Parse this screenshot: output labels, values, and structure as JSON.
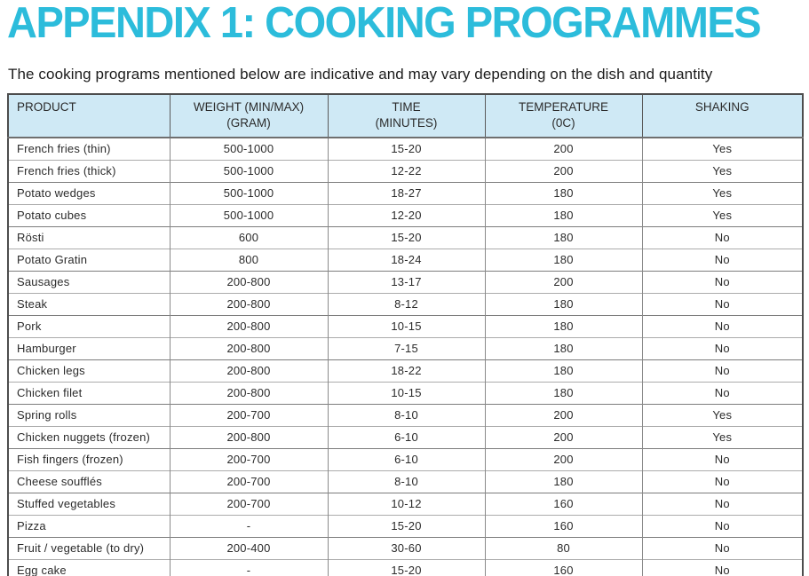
{
  "page": {
    "title": "APPENDIX 1: COOKING PROGRAMMES",
    "subtitle": "The cooking programs mentioned below are indicative and may vary depending on the dish and quantity"
  },
  "colors": {
    "accent_cyan": "#2cbcdb",
    "header_background": "#cfe9f5",
    "body_text": "#2b2b2b",
    "border_dark": "#4d4d4d",
    "border_light": "#ababab"
  },
  "table": {
    "columns": [
      {
        "key": "product",
        "label": "PRODUCT",
        "sublabel": "",
        "align": "left"
      },
      {
        "key": "weight",
        "label": "WEIGHT (MIN/MAX)",
        "sublabel": "(GRAM)",
        "align": "center"
      },
      {
        "key": "time",
        "label": "TIME",
        "sublabel": "(MINUTES)",
        "align": "center"
      },
      {
        "key": "temperature",
        "label": "TEMPERATURE",
        "sublabel": "(0C)",
        "align": "center"
      },
      {
        "key": "shaking",
        "label": "SHAKING",
        "sublabel": "",
        "align": "center"
      }
    ],
    "rows": [
      [
        "French fries (thin)",
        "500-1000",
        "15-20",
        "200",
        "Yes"
      ],
      [
        "French fries (thick)",
        "500-1000",
        "12-22",
        "200",
        "Yes"
      ],
      [
        "Potato wedges",
        "500-1000",
        "18-27",
        "180",
        "Yes"
      ],
      [
        "Potato cubes",
        "500-1000",
        "12-20",
        "180",
        "Yes"
      ],
      [
        "Rösti",
        "600",
        "15-20",
        "180",
        "No"
      ],
      [
        "Potato Gratin",
        "800",
        "18-24",
        "180",
        "No"
      ],
      [
        "Sausages",
        "200-800",
        "13-17",
        "200",
        "No"
      ],
      [
        "Steak",
        "200-800",
        "8-12",
        "180",
        "No"
      ],
      [
        "Pork",
        "200-800",
        "10-15",
        "180",
        "No"
      ],
      [
        "Hamburger",
        "200-800",
        "7-15",
        "180",
        "No"
      ],
      [
        "Chicken legs",
        "200-800",
        "18-22",
        "180",
        "No"
      ],
      [
        "Chicken filet",
        "200-800",
        "10-15",
        "180",
        "No"
      ],
      [
        "Spring rolls",
        "200-700",
        "8-10",
        "200",
        "Yes"
      ],
      [
        "Chicken nuggets (frozen)",
        "200-800",
        "6-10",
        "200",
        "Yes"
      ],
      [
        "Fish fingers (frozen)",
        "200-700",
        "6-10",
        "200",
        "No"
      ],
      [
        "Cheese soufflés",
        "200-700",
        "8-10",
        "180",
        "No"
      ],
      [
        "Stuffed vegetables",
        "200-700",
        "10-12",
        "160",
        "No"
      ],
      [
        "Pizza",
        "-",
        "15-20",
        "160",
        "No"
      ],
      [
        "Fruit / vegetable (to dry)",
        "200-400",
        "30-60",
        "80",
        "No"
      ],
      [
        "Egg cake",
        "-",
        "15-20",
        "160",
        "No"
      ]
    ]
  }
}
